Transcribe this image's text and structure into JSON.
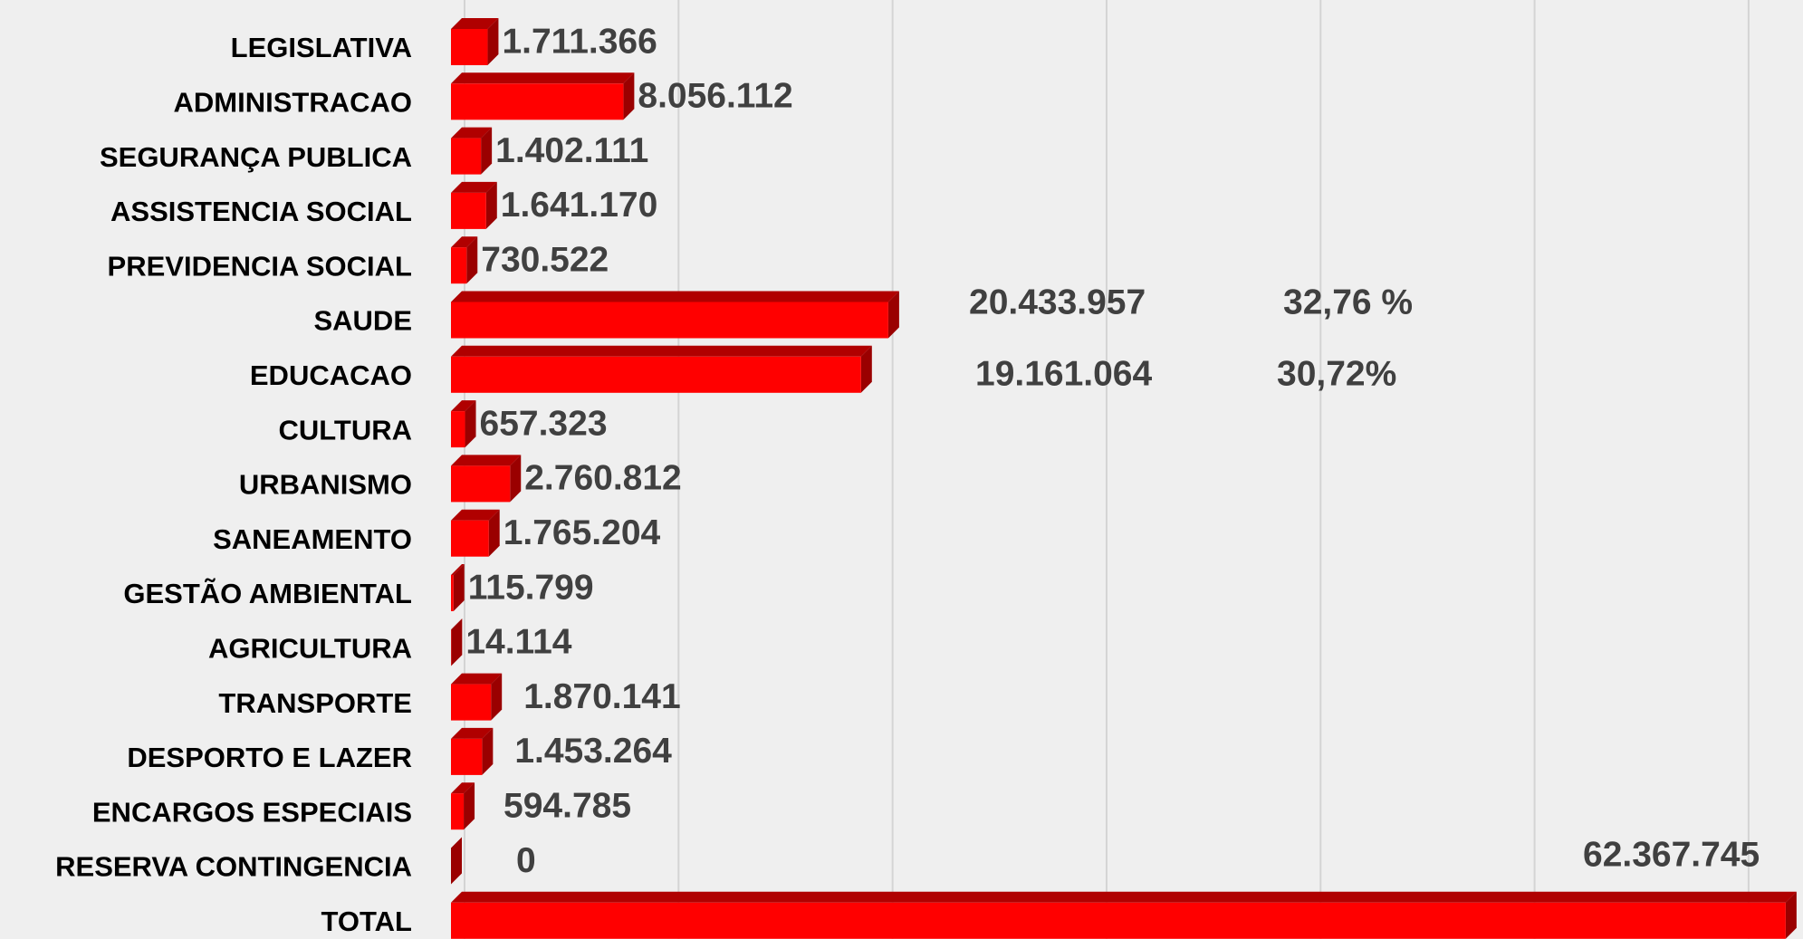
{
  "chart_data": {
    "type": "bar",
    "orientation": "horizontal",
    "categories": [
      "LEGISLATIVA",
      "ADMINISTRACAO",
      "SEGURANÇA PUBLICA",
      "ASSISTENCIA SOCIAL",
      "PREVIDENCIA SOCIAL",
      "SAUDE",
      "EDUCACAO",
      "CULTURA",
      "URBANISMO",
      "SANEAMENTO",
      "GESTÃO AMBIENTAL",
      "AGRICULTURA",
      "TRANSPORTE",
      "DESPORTO E LAZER",
      "ENCARGOS ESPECIAIS",
      "RESERVA CONTINGENCIA",
      "TOTAL"
    ],
    "values": [
      1711366,
      8056112,
      1402111,
      1641170,
      730522,
      20433957,
      19161064,
      657323,
      2760812,
      1765204,
      115799,
      14114,
      1870141,
      1453264,
      594785,
      0,
      62367745
    ],
    "value_labels": [
      "1.711.366",
      "8.056.112",
      "1.402.111",
      "1.641.170",
      "730.522",
      "20.433.957",
      "19.161.064",
      "657.323",
      "2.760.812",
      "1.765.204",
      "115.799",
      "14.114",
      "1.870.141",
      "1.453.264",
      "594.785",
      "0",
      "62.367.745"
    ],
    "annotations": [
      "32,76 %",
      "30,72%"
    ],
    "color": "#ff0000",
    "xlim": [
      0,
      62500000
    ],
    "xticks": [
      0,
      10000000,
      20000000,
      30000000,
      40000000,
      50000000,
      60000000
    ],
    "grid": true
  }
}
